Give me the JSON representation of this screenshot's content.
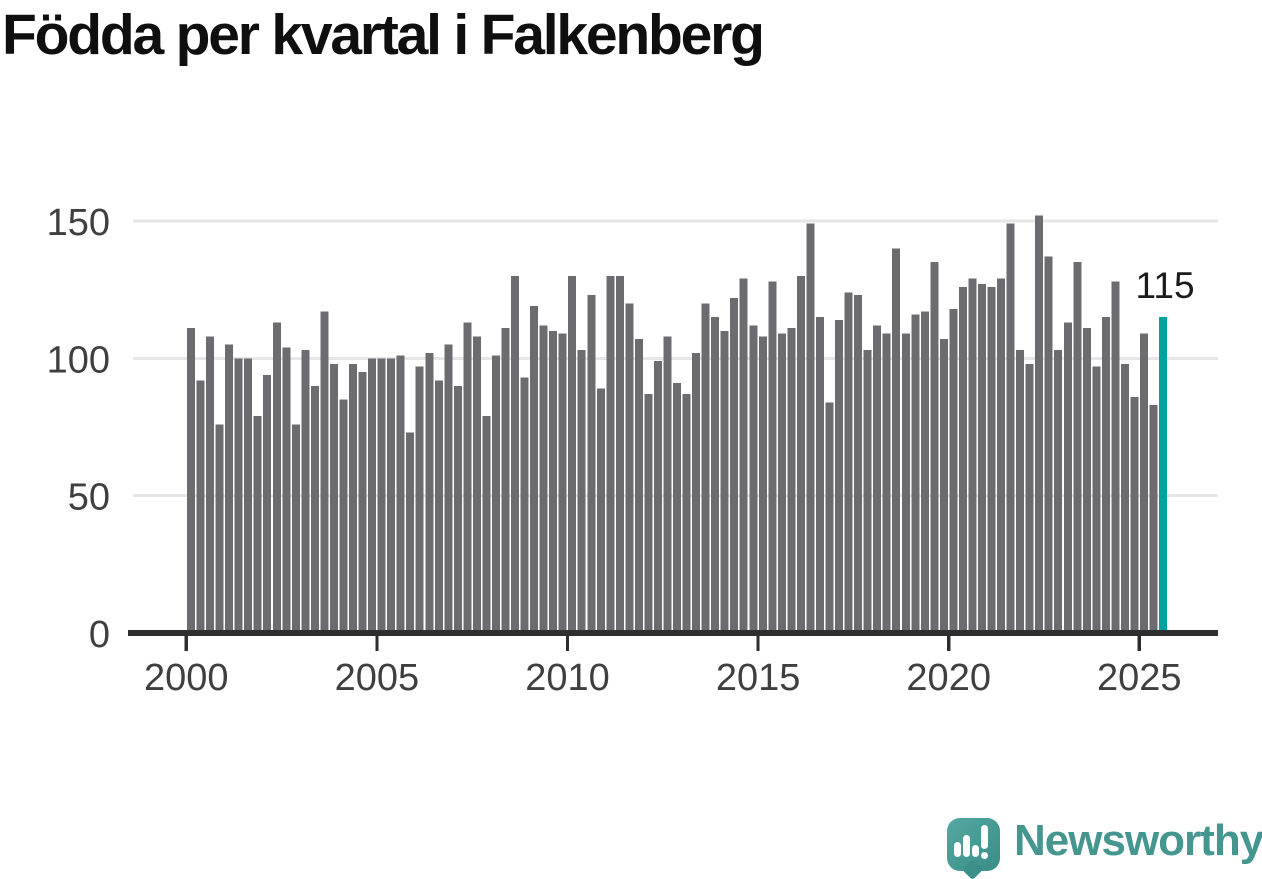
{
  "title": "Födda per kvartal i Falkenberg",
  "chart_data": {
    "type": "bar",
    "title": "Födda per kvartal i Falkenberg",
    "x_unit": "quarter",
    "x_start": "2000 Q1",
    "x_end": "2025 Q3",
    "ylim": [
      0,
      155
    ],
    "grid": "horizontal",
    "legend": "none",
    "ytick_labels": [
      "0",
      "50",
      "100",
      "150"
    ],
    "xtick_labels": [
      "2000",
      "2005",
      "2010",
      "2015",
      "2020",
      "2025"
    ],
    "bar_color": "#6C6B70",
    "highlight_color": "#00A1A1",
    "highlight_index": 102,
    "highlight_label": "115",
    "values": [
      111,
      92,
      108,
      76,
      105,
      100,
      100,
      79,
      94,
      113,
      104,
      76,
      103,
      90,
      117,
      98,
      85,
      98,
      95,
      100,
      100,
      100,
      101,
      73,
      97,
      102,
      92,
      105,
      90,
      113,
      108,
      79,
      101,
      111,
      130,
      93,
      119,
      112,
      110,
      109,
      130,
      103,
      123,
      89,
      130,
      130,
      120,
      107,
      87,
      99,
      108,
      91,
      87,
      102,
      120,
      115,
      110,
      122,
      129,
      112,
      108,
      128,
      109,
      111,
      130,
      149,
      115,
      84,
      114,
      124,
      123,
      103,
      112,
      109,
      140,
      109,
      116,
      117,
      135,
      107,
      118,
      126,
      129,
      127,
      126,
      129,
      149,
      103,
      98,
      152,
      137,
      103,
      113,
      135,
      111,
      97,
      115,
      128,
      98,
      86,
      109,
      83,
      115
    ]
  },
  "branding": {
    "name": "Newsworthy",
    "logo_icon": "speech-bubble-bar-chart-icon",
    "wordmark_color": "#45968F",
    "icon_color": "#459A93"
  }
}
